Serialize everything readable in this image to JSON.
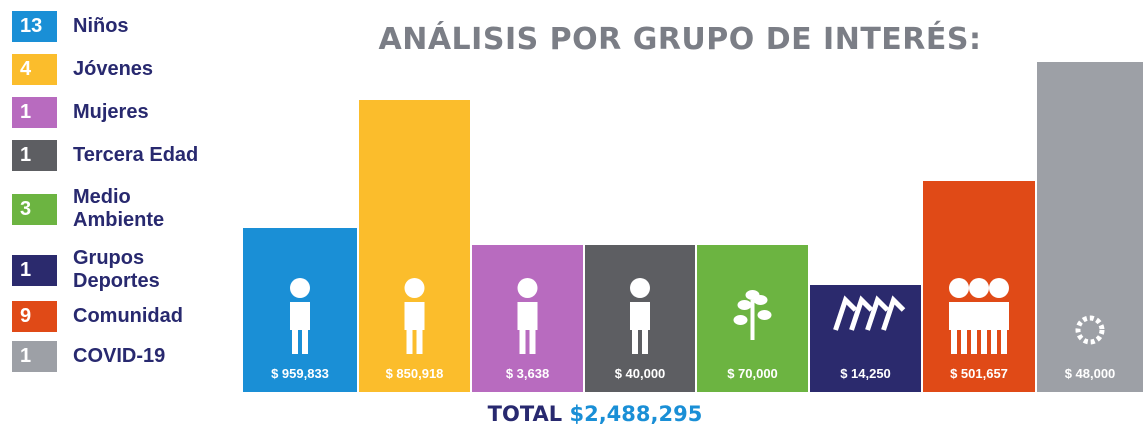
{
  "title": "ANÁLISIS POR GRUPO DE INTERÉS:",
  "legend": [
    {
      "count": "13",
      "label": "Niños",
      "color": "#1a8fd6"
    },
    {
      "count": "4",
      "label": "Jóvenes",
      "color": "#fbbd2c"
    },
    {
      "count": "1",
      "label": "Mujeres",
      "color": "#b86bbf"
    },
    {
      "count": "1",
      "label": "Tercera Edad",
      "color": "#5d5e62"
    },
    {
      "count": "3",
      "label": "Medio Ambiente",
      "color": "#6cb441"
    },
    {
      "count": "1",
      "label": "Grupos Deportes",
      "color": "#2b2a6d"
    },
    {
      "count": "9",
      "label": "Comunidad",
      "color": "#e04a17"
    },
    {
      "count": "1",
      "label": "COVID-19",
      "color": "#9da0a6"
    }
  ],
  "amounts": [
    "$ 959,833",
    "$ 850,918",
    "$ 3,638",
    "$ 40,000",
    "$ 70,000",
    "$ 14,250",
    "$ 501,657",
    "$ 48,000"
  ],
  "total": {
    "label": "TOTAL",
    "value": "$2,488,295"
  }
}
